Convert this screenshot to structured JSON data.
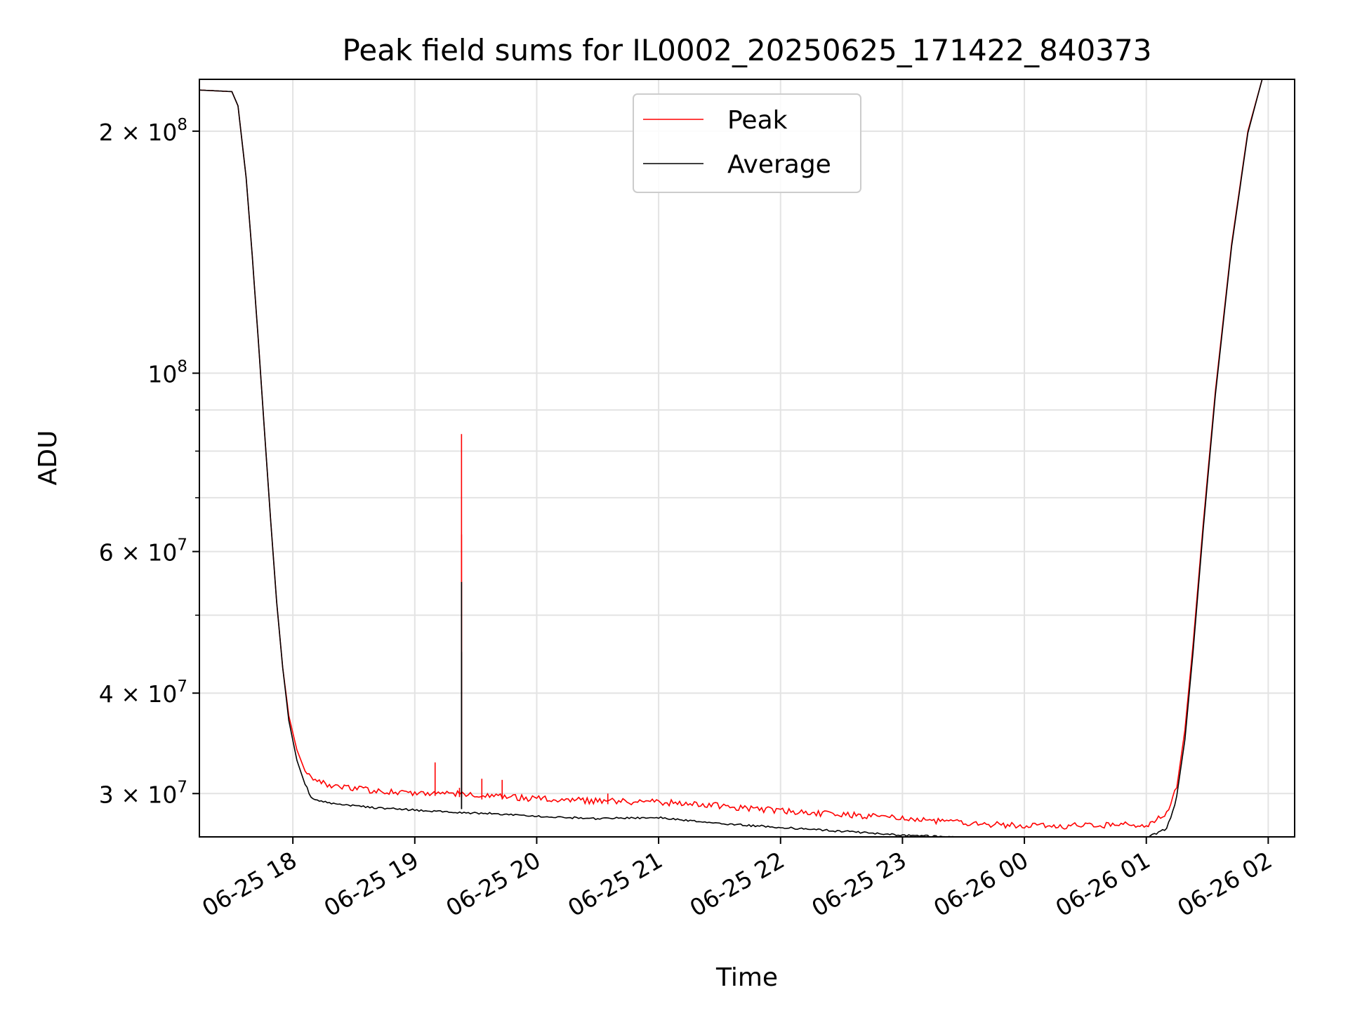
{
  "chart_data": {
    "type": "line",
    "title": "Peak field sums for IL0002_20250625_171422_840373",
    "xlabel": "Time",
    "ylabel": "ADU",
    "yscale": "log",
    "grid": true,
    "legend_placement": "upper center",
    "xlim": [
      "2025-06-25 17:14",
      "2025-06-26 02:13"
    ],
    "ylim": [
      26500000,
      232000000
    ],
    "x_ticks": [
      {
        "t": "2025-06-25 18:00",
        "label": "06-25 18"
      },
      {
        "t": "2025-06-25 19:00",
        "label": "06-25 19"
      },
      {
        "t": "2025-06-25 20:00",
        "label": "06-25 20"
      },
      {
        "t": "2025-06-25 21:00",
        "label": "06-25 21"
      },
      {
        "t": "2025-06-25 22:00",
        "label": "06-25 22"
      },
      {
        "t": "2025-06-25 23:00",
        "label": "06-25 23"
      },
      {
        "t": "2025-06-26 00:00",
        "label": "06-26 00"
      },
      {
        "t": "2025-06-26 01:00",
        "label": "06-26 01"
      },
      {
        "t": "2025-06-26 02:00",
        "label": "06-26 02"
      }
    ],
    "y_ticks": [
      {
        "v": 30000000,
        "base": "3 × 10",
        "exp": "7"
      },
      {
        "v": 40000000,
        "base": "4 × 10",
        "exp": "7"
      },
      {
        "v": 60000000,
        "base": "6 × 10",
        "exp": "7"
      },
      {
        "v": 100000000,
        "base": "10",
        "exp": "8"
      },
      {
        "v": 200000000,
        "base": "2 × 10",
        "exp": "8"
      }
    ],
    "y_minor_ticks": [
      50000000,
      70000000,
      80000000,
      90000000
    ],
    "series": [
      {
        "name": "Peak",
        "color": "#ff0000",
        "points": [
          [
            "2025-06-25 17:14",
            225000000
          ],
          [
            "2025-06-25 17:30",
            224000000
          ],
          [
            "2025-06-25 17:33",
            215000000
          ],
          [
            "2025-06-25 17:37",
            175000000
          ],
          [
            "2025-06-25 17:40",
            140000000
          ],
          [
            "2025-06-25 17:43",
            110000000
          ],
          [
            "2025-06-25 17:46",
            85000000
          ],
          [
            "2025-06-25 17:49",
            66000000
          ],
          [
            "2025-06-25 17:52",
            52000000
          ],
          [
            "2025-06-25 17:55",
            43000000
          ],
          [
            "2025-06-25 17:58",
            37500000
          ],
          [
            "2025-06-25 18:02",
            34000000
          ],
          [
            "2025-06-25 18:06",
            32000000
          ],
          [
            "2025-06-25 18:10",
            31000000
          ],
          [
            "2025-06-25 18:20",
            30300000
          ],
          [
            "2025-06-25 18:40",
            30000000
          ],
          [
            "2025-06-25 19:00",
            29800000
          ],
          [
            "2025-06-25 19:20",
            29700000
          ],
          [
            "2025-06-25 19:40",
            29500000
          ],
          [
            "2025-06-25 20:00",
            29300000
          ],
          [
            "2025-06-25 20:30",
            29100000
          ],
          [
            "2025-06-25 21:00",
            29000000
          ],
          [
            "2025-06-25 21:30",
            28700000
          ],
          [
            "2025-06-25 22:00",
            28300000
          ],
          [
            "2025-06-25 22:30",
            28000000
          ],
          [
            "2025-06-25 23:00",
            27700000
          ],
          [
            "2025-06-25 23:30",
            27300000
          ],
          [
            "2025-06-26 00:00",
            27100000
          ],
          [
            "2025-06-26 00:30",
            27100000
          ],
          [
            "2025-06-26 01:00",
            27200000
          ],
          [
            "2025-06-26 01:10",
            28000000
          ],
          [
            "2025-06-26 01:15",
            30500000
          ],
          [
            "2025-06-26 01:19",
            36000000
          ],
          [
            "2025-06-26 01:23",
            46000000
          ],
          [
            "2025-06-26 01:28",
            65000000
          ],
          [
            "2025-06-26 01:34",
            95000000
          ],
          [
            "2025-06-26 01:42",
            145000000
          ],
          [
            "2025-06-26 01:50",
            200000000
          ],
          [
            "2025-06-26 01:57",
            232000000
          ]
        ],
        "spikes": [
          [
            "2025-06-25 19:10",
            32800000
          ],
          [
            "2025-06-25 19:22",
            30500000
          ],
          [
            "2025-06-25 19:23",
            84000000
          ],
          [
            "2025-06-25 19:23",
            63000000
          ],
          [
            "2025-06-25 19:33",
            31300000
          ],
          [
            "2025-06-25 19:43",
            31200000
          ],
          [
            "2025-06-25 20:35",
            30000000
          ]
        ]
      },
      {
        "name": "Average",
        "color": "#000000",
        "points": [
          [
            "2025-06-25 17:14",
            225000000
          ],
          [
            "2025-06-25 17:30",
            224000000
          ],
          [
            "2025-06-25 17:33",
            215000000
          ],
          [
            "2025-06-25 17:37",
            175000000
          ],
          [
            "2025-06-25 17:40",
            140000000
          ],
          [
            "2025-06-25 17:43",
            110000000
          ],
          [
            "2025-06-25 17:46",
            85000000
          ],
          [
            "2025-06-25 17:49",
            66000000
          ],
          [
            "2025-06-25 17:52",
            52000000
          ],
          [
            "2025-06-25 17:55",
            43000000
          ],
          [
            "2025-06-25 17:58",
            37000000
          ],
          [
            "2025-06-25 18:02",
            33000000
          ],
          [
            "2025-06-25 18:06",
            30800000
          ],
          [
            "2025-06-25 18:10",
            29800000
          ],
          [
            "2025-06-25 18:20",
            29400000
          ],
          [
            "2025-06-25 18:40",
            29100000
          ],
          [
            "2025-06-25 19:00",
            28900000
          ],
          [
            "2025-06-25 19:20",
            28700000
          ],
          [
            "2025-06-25 19:40",
            28600000
          ],
          [
            "2025-06-25 20:00",
            28400000
          ],
          [
            "2025-06-25 20:30",
            28200000
          ],
          [
            "2025-06-25 21:00",
            28300000
          ],
          [
            "2025-06-25 21:30",
            27800000
          ],
          [
            "2025-06-25 22:00",
            27500000
          ],
          [
            "2025-06-25 22:30",
            27200000
          ],
          [
            "2025-06-25 23:00",
            26900000
          ],
          [
            "2025-06-25 23:30",
            26700000
          ],
          [
            "2025-06-26 00:00",
            26700000
          ],
          [
            "2025-06-26 00:30",
            26600000
          ],
          [
            "2025-06-26 01:00",
            26700000
          ],
          [
            "2025-06-26 01:10",
            27400000
          ],
          [
            "2025-06-26 01:15",
            29800000
          ],
          [
            "2025-06-26 01:19",
            35000000
          ],
          [
            "2025-06-26 01:23",
            45000000
          ],
          [
            "2025-06-26 01:28",
            64000000
          ],
          [
            "2025-06-26 01:34",
            94000000
          ],
          [
            "2025-06-26 01:42",
            144000000
          ],
          [
            "2025-06-26 01:50",
            199000000
          ],
          [
            "2025-06-26 01:57",
            232000000
          ]
        ],
        "spikes": [
          [
            "2025-06-25 19:23",
            55000000
          ],
          [
            "2025-06-25 19:23",
            45000000
          ]
        ]
      }
    ]
  }
}
